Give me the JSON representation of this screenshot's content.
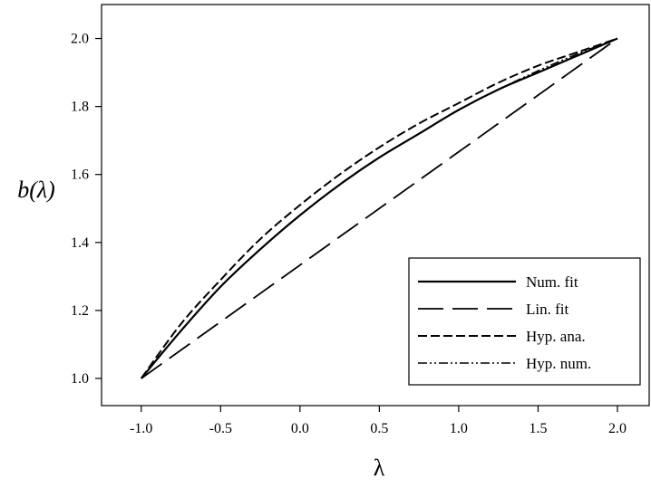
{
  "chart_data": {
    "type": "line",
    "xlabel": "λ",
    "ylabel": "b(λ)",
    "xlim": [
      -1.25,
      2.2
    ],
    "ylim": [
      0.92,
      2.1
    ],
    "xticks": [
      -1.0,
      -0.5,
      0.0,
      0.5,
      1.0,
      1.5,
      2.0
    ],
    "xtick_labels": [
      "-1.0",
      "-0.5",
      "0.0",
      "0.5",
      "1.0",
      "1.5",
      "2.0"
    ],
    "yticks": [
      1.0,
      1.2,
      1.4,
      1.6,
      1.8,
      2.0
    ],
    "ytick_labels": [
      "1.0",
      "1.2",
      "1.4",
      "1.6",
      "1.8",
      "2.0"
    ],
    "legend_position": "bottom-right",
    "grid": false,
    "series": [
      {
        "name": "Num. fit",
        "style": "solid",
        "x": [
          -1.0,
          -0.75,
          -0.5,
          -0.25,
          0.0,
          0.25,
          0.5,
          0.75,
          1.0,
          1.25,
          1.5,
          1.75,
          2.0
        ],
        "y": [
          1.0,
          1.14,
          1.27,
          1.38,
          1.48,
          1.57,
          1.65,
          1.72,
          1.79,
          1.85,
          1.9,
          1.95,
          2.0
        ]
      },
      {
        "name": "Lin. fit",
        "style": "long-dash",
        "x": [
          -1.0,
          2.0
        ],
        "y": [
          1.0,
          2.0
        ]
      },
      {
        "name": "Hyp. ana.",
        "style": "short-dash",
        "x": [
          -1.0,
          -0.75,
          -0.5,
          -0.25,
          0.0,
          0.25,
          0.5,
          0.75,
          1.0,
          1.25,
          1.5,
          1.75,
          2.0
        ],
        "y": [
          1.0,
          1.16,
          1.29,
          1.41,
          1.51,
          1.6,
          1.68,
          1.75,
          1.81,
          1.87,
          1.92,
          1.96,
          2.0
        ]
      },
      {
        "name": "Hyp. num.",
        "style": "dash-dot-dot",
        "x": [
          -1.0,
          -0.75,
          -0.5,
          -0.25,
          0.0,
          0.25,
          0.5,
          0.75,
          1.0,
          1.25,
          1.5,
          1.75,
          2.0
        ],
        "y": [
          1.0,
          1.14,
          1.27,
          1.38,
          1.48,
          1.57,
          1.65,
          1.72,
          1.79,
          1.85,
          1.905,
          1.955,
          2.0
        ]
      }
    ]
  }
}
